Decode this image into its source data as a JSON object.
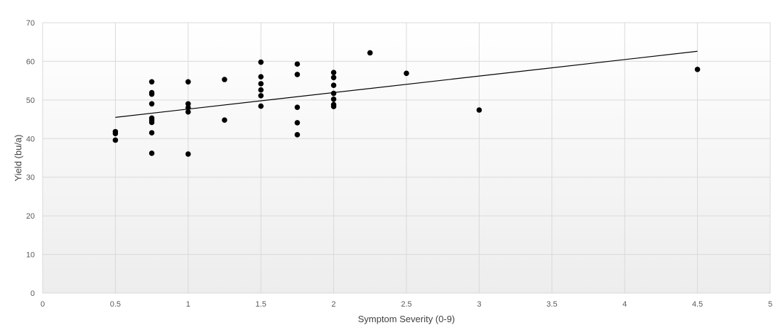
{
  "chart_data": {
    "type": "scatter",
    "title": "",
    "xlabel": "Symptom Severity (0-9)",
    "ylabel": "Yield (bu/a)",
    "xlim": [
      0,
      5
    ],
    "ylim": [
      0,
      70
    ],
    "x_ticks": [
      0,
      0.5,
      1,
      1.5,
      2,
      2.5,
      3,
      3.5,
      4,
      4.5,
      5
    ],
    "y_ticks": [
      0,
      10,
      20,
      30,
      40,
      50,
      60,
      70
    ],
    "grid": true,
    "legend": "none",
    "colors": {
      "points": "#000000",
      "trendline": "#000000",
      "grid": "#d9d9d9",
      "plot_background_top": "#ffffff",
      "plot_background_bottom": "#ededed"
    },
    "series": [
      {
        "points": [
          [
            0.5,
            41.8
          ],
          [
            0.5,
            41.3
          ],
          [
            0.5,
            39.6
          ],
          [
            0.75,
            54.7
          ],
          [
            0.75,
            51.9
          ],
          [
            0.75,
            51.5
          ],
          [
            0.75,
            49.0
          ],
          [
            0.75,
            45.3
          ],
          [
            0.75,
            44.8
          ],
          [
            0.75,
            44.2
          ],
          [
            0.75,
            41.5
          ],
          [
            0.75,
            36.2
          ],
          [
            1,
            54.7
          ],
          [
            1,
            49.0
          ],
          [
            1,
            48.0
          ],
          [
            1,
            46.9
          ],
          [
            1,
            36.0
          ],
          [
            1.25,
            55.3
          ],
          [
            1.25,
            44.8
          ],
          [
            1.5,
            59.8
          ],
          [
            1.5,
            56.0
          ],
          [
            1.5,
            54.2
          ],
          [
            1.5,
            52.6
          ],
          [
            1.5,
            51.1
          ],
          [
            1.5,
            48.4
          ],
          [
            1.75,
            59.3
          ],
          [
            1.75,
            56.6
          ],
          [
            1.75,
            48.1
          ],
          [
            1.75,
            44.1
          ],
          [
            1.75,
            41.0
          ],
          [
            2,
            57.1
          ],
          [
            2,
            55.8
          ],
          [
            2,
            53.8
          ],
          [
            2,
            51.7
          ],
          [
            2,
            50.2
          ],
          [
            2,
            48.8
          ],
          [
            2,
            48.3
          ],
          [
            2.25,
            62.2
          ],
          [
            2.5,
            56.9
          ],
          [
            3,
            47.4
          ],
          [
            4.5,
            57.9
          ]
        ]
      }
    ],
    "trendline": {
      "x": [
        0.5,
        4.5
      ],
      "y": [
        45.5,
        62.6
      ]
    }
  }
}
